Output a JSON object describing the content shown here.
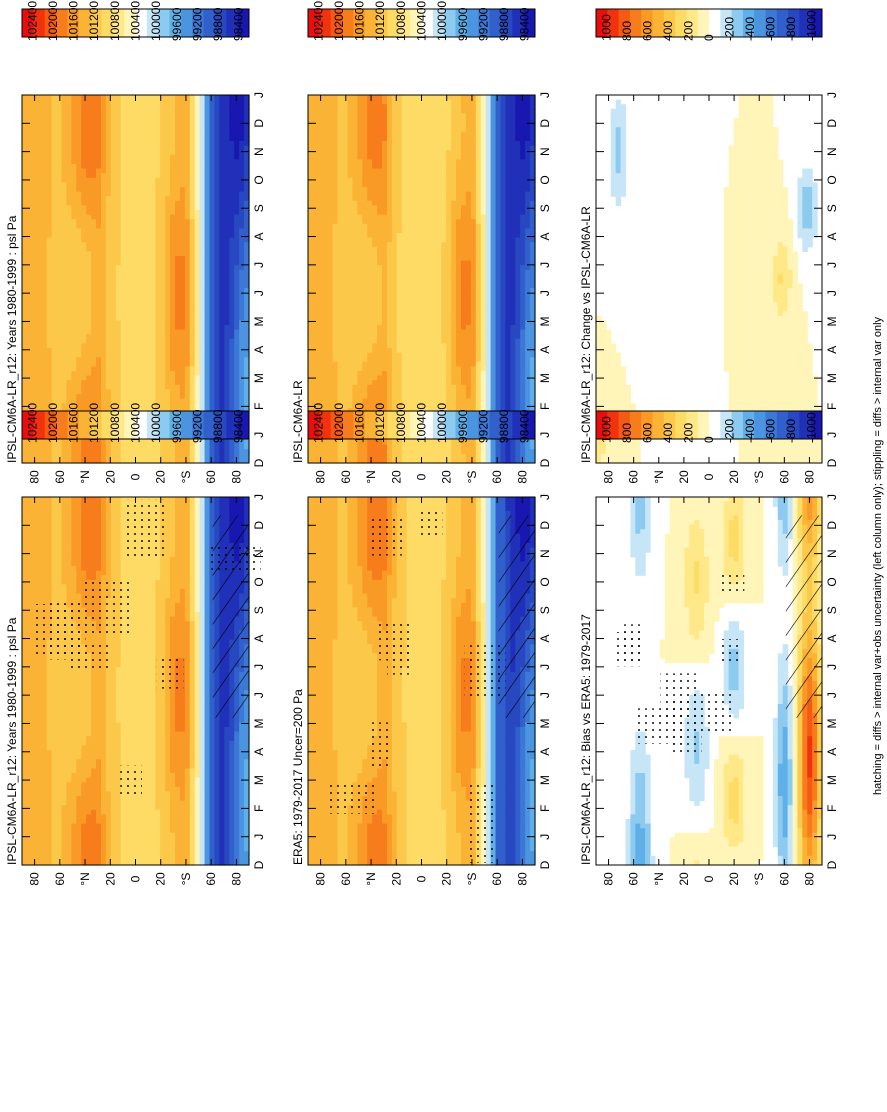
{
  "chart_data": {
    "type": "heatmap",
    "orientation": "rotated-90-counterclockwise",
    "footnote": "hatching = diffs > internal var+obs uncertainty (left column only); stippling = diffs > internal var only",
    "month_labels": [
      "D",
      "J",
      "F",
      "M",
      "A",
      "M",
      "J",
      "J",
      "A",
      "S",
      "O",
      "N",
      "D",
      "J"
    ],
    "lat_labels": [
      "80",
      "60",
      "°N",
      "20",
      "0",
      "20",
      "°S",
      "60",
      "80"
    ],
    "lat_range": [
      -90,
      90
    ],
    "palettes": {
      "psl": [
        "#e80e0e",
        "#f2320f",
        "#f55a14",
        "#f77c1c",
        "#f99a27",
        "#fbb336",
        "#fcc84a",
        "#fddb64",
        "#fee887",
        "#fff5b8",
        "#ffffff",
        "#c6e6f8",
        "#8ccaf0",
        "#5fb0e8",
        "#4a94e0",
        "#3c78d6",
        "#3160cc",
        "#2848c2",
        "#2030b8",
        "#1818b0"
      ],
      "diff": [
        "#e80e0e",
        "#f2320f",
        "#f55a14",
        "#f77c1c",
        "#f99a27",
        "#fbb336",
        "#fcc84a",
        "#fddb64",
        "#fee887",
        "#fff5b8",
        "#ffffff",
        "#c6e6f8",
        "#8ccaf0",
        "#5fb0e8",
        "#4a94e0",
        "#3c78d6",
        "#3160cc",
        "#2848c2",
        "#2030b8",
        "#1818b0"
      ]
    },
    "colorbars": {
      "psl": [
        "102400",
        "102000",
        "101600",
        "101200",
        "100800",
        "100400",
        "100000",
        "99600",
        "99200",
        "98800",
        "98400"
      ],
      "diff": [
        "1000",
        "800",
        "600",
        "400",
        "200",
        "0",
        "-200",
        "-400",
        "-600",
        "-800",
        "-1000"
      ]
    },
    "panels": [
      {
        "id": "model-left",
        "title": "IPSL-CM6A-LR_r12: Years 1980-1999 : psl Pa",
        "field": "psl",
        "variant": 0,
        "hatch": true,
        "stipple": true,
        "profile_pa": [
          [
            -90,
            99100
          ],
          [
            -80,
            98700
          ],
          [
            -70,
            98500
          ],
          [
            -60,
            99000
          ],
          [
            -50,
            100500
          ],
          [
            -40,
            101600
          ],
          [
            -30,
            101500
          ],
          [
            -20,
            101100
          ],
          [
            -10,
            101000
          ],
          [
            0,
            101000
          ],
          [
            10,
            101000
          ],
          [
            20,
            101200
          ],
          [
            30,
            101600
          ],
          [
            40,
            101500
          ],
          [
            50,
            101300
          ],
          [
            60,
            101200
          ],
          [
            70,
            101300
          ],
          [
            80,
            101400
          ],
          [
            90,
            101400
          ]
        ]
      },
      {
        "id": "model-right",
        "title": "IPSL-CM6A-LR_r12: Years 1980-1999 : psl Pa",
        "field": "psl",
        "variant": 0,
        "hatch": false,
        "stipple": false
      },
      {
        "id": "obs-left",
        "title": "ERA5: 1979-2017 Uncer=200 Pa",
        "field": "psl",
        "variant": 1,
        "hatch": true,
        "stipple": true
      },
      {
        "id": "mm-right",
        "title": "IPSL-CM6A-LR",
        "field": "psl",
        "variant": 2,
        "hatch": false,
        "stipple": false
      },
      {
        "id": "bias-left",
        "title": "IPSL-CM6A-LR_r12: Bias vs ERA5: 1979-2017",
        "field": "diff",
        "variant": 3,
        "hatch": true,
        "stipple": true,
        "bias_range_pa": [
          -700,
          1100
        ]
      },
      {
        "id": "change-right",
        "title": "IPSL-CM6A-LR_r12: Change vs IPSL-CM6A-LR",
        "field": "diff",
        "variant": 4,
        "hatch": false,
        "stipple": false,
        "change_range_pa": [
          -300,
          250
        ]
      }
    ]
  }
}
